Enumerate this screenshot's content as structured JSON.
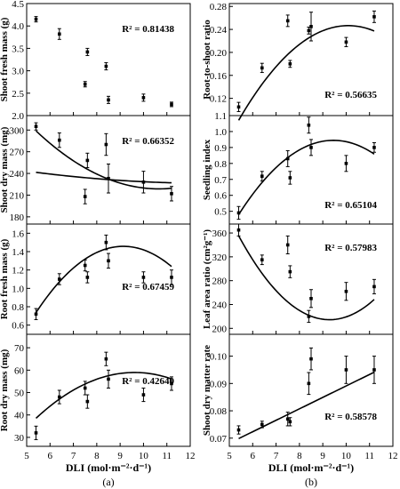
{
  "figure": {
    "xlabel_a": "DLI (mol·m⁻²·d⁻¹)",
    "xlabel_b": "DLI (mol·m⁻²·d⁻¹)",
    "label_a": "(a)",
    "label_b": "(b)"
  },
  "chart_data": [
    {
      "type": "scatter",
      "id": "shoot-fresh-mass",
      "ylabel": "Shoot fresh mass (g)",
      "r2": "R² = 0.81438",
      "xlim": [
        5,
        12
      ],
      "ylim": [
        2.0,
        4.5
      ],
      "yticks": [
        "2.0",
        "2.5",
        "3.0",
        "3.5",
        "4.0",
        "4.5"
      ],
      "yticks_num": [
        2.0,
        2.5,
        3.0,
        3.5,
        4.0,
        4.5
      ],
      "points": [
        {
          "x": 5.4,
          "y": 4.15,
          "err": 0.06
        },
        {
          "x": 6.4,
          "y": 3.82,
          "err": 0.12
        },
        {
          "x": 7.5,
          "y": 2.7,
          "err": 0.06
        },
        {
          "x": 7.6,
          "y": 3.42,
          "err": 0.08
        },
        {
          "x": 8.4,
          "y": 3.1,
          "err": 0.08
        },
        {
          "x": 8.5,
          "y": 2.35,
          "err": 0.08
        },
        {
          "x": 10.0,
          "y": 2.4,
          "err": 0.08
        },
        {
          "x": 11.2,
          "y": 2.25,
          "err": 0.05
        }
      ],
      "fit": [
        1.218,
        -0.1136,
        0.00442
      ]
    },
    {
      "type": "scatter",
      "id": "shoot-dry-mass",
      "ylabel": "Shoot dry mass (mg)",
      "r2": "R² = 0.66352",
      "xlim": [
        5,
        12
      ],
      "ylim": [
        170,
        320
      ],
      "yticks": [
        "180",
        "210",
        "240",
        "270",
        "300"
      ],
      "yticks_num": [
        180,
        210,
        240,
        270,
        300
      ],
      "points": [
        {
          "x": 5.4,
          "y": 305,
          "err": 5
        },
        {
          "x": 6.4,
          "y": 286,
          "err": 10
        },
        {
          "x": 7.5,
          "y": 208,
          "err": 10
        },
        {
          "x": 7.6,
          "y": 258,
          "err": 10
        },
        {
          "x": 8.4,
          "y": 280,
          "err": 15
        },
        {
          "x": 8.5,
          "y": 233,
          "err": 20
        },
        {
          "x": 10.0,
          "y": 228,
          "err": 15
        },
        {
          "x": 11.2,
          "y": 212,
          "err": 10
        }
      ],
      "fit": [
        548.1,
        -61.82,
        2.9
      ]
    },
    {
      "type": "scatter",
      "id": "root-fresh-mass",
      "ylabel": "Root fresh mass (g)",
      "r2": "R² = 0.67459",
      "xlim": [
        5,
        12
      ],
      "ylim": [
        0.5,
        1.7
      ],
      "yticks": [
        "0.6",
        "0.8",
        "1.0",
        "1.2",
        "1.4",
        "1.6"
      ],
      "yticks_num": [
        0.6,
        0.8,
        1.0,
        1.2,
        1.4,
        1.6
      ],
      "points": [
        {
          "x": 5.4,
          "y": 0.72,
          "err": 0.06
        },
        {
          "x": 6.4,
          "y": 1.1,
          "err": 0.06
        },
        {
          "x": 7.5,
          "y": 1.25,
          "err": 0.06
        },
        {
          "x": 7.6,
          "y": 1.12,
          "err": 0.06
        },
        {
          "x": 8.4,
          "y": 1.5,
          "err": 0.08
        },
        {
          "x": 8.5,
          "y": 1.3,
          "err": 0.08
        },
        {
          "x": 10.0,
          "y": 1.12,
          "err": 0.06
        },
        {
          "x": 11.2,
          "y": 1.12,
          "err": 0.08
        }
      ],
      "fit": [
        -2.853,
        0.9435,
        -0.05163
      ]
    },
    {
      "type": "scatter",
      "id": "root-dry-mass",
      "ylabel": "Root dry mass (mg)",
      "r2": "R² = 0.42640",
      "xlim": [
        5,
        12
      ],
      "ylim": [
        26,
        76
      ],
      "yticks": [
        "30",
        "40",
        "50",
        "60",
        "70"
      ],
      "yticks_num": [
        30,
        40,
        50,
        60,
        70
      ],
      "points": [
        {
          "x": 5.4,
          "y": 32,
          "err": 3
        },
        {
          "x": 6.4,
          "y": 48,
          "err": 3
        },
        {
          "x": 7.5,
          "y": 52,
          "err": 3
        },
        {
          "x": 7.6,
          "y": 46,
          "err": 3
        },
        {
          "x": 8.4,
          "y": 65,
          "err": 3
        },
        {
          "x": 8.5,
          "y": 56,
          "err": 4
        },
        {
          "x": 10.0,
          "y": 49,
          "err": 3
        },
        {
          "x": 11.2,
          "y": 54,
          "err": 3
        }
      ],
      "fit": [
        -47.31,
        22.1,
        -1.149
      ]
    },
    {
      "type": "scatter",
      "id": "root-to-shoot-ratio",
      "ylabel": "Root-to-shoot ratio",
      "r2": "R² = 0.56635",
      "xlim": [
        5,
        12
      ],
      "ylim": [
        0.09,
        0.285
      ],
      "yticks": [
        "0.12",
        "0.16",
        "0.20",
        "0.24",
        "0.28"
      ],
      "yticks_num": [
        0.12,
        0.16,
        0.2,
        0.24,
        0.28
      ],
      "points": [
        {
          "x": 5.4,
          "y": 0.105,
          "err": 0.008
        },
        {
          "x": 6.4,
          "y": 0.173,
          "err": 0.008
        },
        {
          "x": 7.5,
          "y": 0.255,
          "err": 0.01
        },
        {
          "x": 7.6,
          "y": 0.18,
          "err": 0.006
        },
        {
          "x": 8.4,
          "y": 0.238,
          "err": 0.006
        },
        {
          "x": 8.5,
          "y": 0.245,
          "err": 0.025
        },
        {
          "x": 10.0,
          "y": 0.218,
          "err": 0.008
        },
        {
          "x": 11.2,
          "y": 0.262,
          "err": 0.01
        }
      ],
      "fit": [
        -0.5165,
        0.1513,
        -0.0075
      ]
    },
    {
      "type": "scatter",
      "id": "seedling-index",
      "ylabel": "Seedling index",
      "r2": "R² = 0.65104",
      "xlim": [
        5,
        12
      ],
      "ylim": [
        0.42,
        1.1
      ],
      "yticks": [
        "0.5",
        "0.6",
        "0.7",
        "0.8",
        "0.9",
        "1.0",
        "1.1"
      ],
      "yticks_num": [
        0.5,
        0.6,
        0.7,
        0.8,
        0.9,
        1.0,
        1.1
      ],
      "points": [
        {
          "x": 5.4,
          "y": 0.49,
          "err": 0.04
        },
        {
          "x": 6.4,
          "y": 0.72,
          "err": 0.03
        },
        {
          "x": 7.5,
          "y": 0.83,
          "err": 0.05
        },
        {
          "x": 7.6,
          "y": 0.71,
          "err": 0.04
        },
        {
          "x": 8.4,
          "y": 1.04,
          "err": 0.05
        },
        {
          "x": 8.5,
          "y": 0.9,
          "err": 0.05
        },
        {
          "x": 10.0,
          "y": 0.8,
          "err": 0.05
        },
        {
          "x": 11.2,
          "y": 0.9,
          "err": 0.03
        }
      ],
      "fit": [
        -1.5856,
        0.5352,
        -0.0283
      ]
    },
    {
      "type": "scatter",
      "id": "leaf-area-ratio",
      "ylabel": "Leaf area ratio (cm²g⁻¹)",
      "r2": "R² = 0.57983",
      "xlim": [
        5,
        12
      ],
      "ylim": [
        190,
        375
      ],
      "yticks": [
        "200",
        "240",
        "280",
        "320",
        "360"
      ],
      "yticks_num": [
        200,
        240,
        280,
        320,
        360
      ],
      "points": [
        {
          "x": 5.4,
          "y": 365,
          "err": 10
        },
        {
          "x": 6.4,
          "y": 315,
          "err": 8
        },
        {
          "x": 7.5,
          "y": 340,
          "err": 15
        },
        {
          "x": 7.6,
          "y": 295,
          "err": 10
        },
        {
          "x": 8.4,
          "y": 220,
          "err": 10
        },
        {
          "x": 8.5,
          "y": 250,
          "err": 15
        },
        {
          "x": 10.0,
          "y": 262,
          "err": 15
        },
        {
          "x": 11.2,
          "y": 270,
          "err": 12
        }
      ],
      "fit": [
        1017.2,
        -172.8,
        9.3
      ]
    },
    {
      "type": "scatter",
      "id": "shoot-dry-matter-rate",
      "ylabel": "Shoot dry matter rate",
      "r2": "R² = 0.58578",
      "xlim": [
        5,
        12
      ],
      "ylim": [
        0.067,
        0.108
      ],
      "yticks": [
        "0.07",
        "0.08",
        "0.09",
        "0.10"
      ],
      "yticks_num": [
        0.07,
        0.08,
        0.09,
        0.1
      ],
      "points": [
        {
          "x": 5.4,
          "y": 0.073,
          "err": 0.0015
        },
        {
          "x": 6.4,
          "y": 0.075,
          "err": 0.0012
        },
        {
          "x": 7.5,
          "y": 0.077,
          "err": 0.0025
        },
        {
          "x": 7.6,
          "y": 0.076,
          "err": 0.0015
        },
        {
          "x": 8.4,
          "y": 0.09,
          "err": 0.004
        },
        {
          "x": 8.5,
          "y": 0.099,
          "err": 0.004
        },
        {
          "x": 10.0,
          "y": 0.095,
          "err": 0.005
        },
        {
          "x": 11.2,
          "y": 0.095,
          "err": 0.005
        }
      ],
      "fit": [
        0.0472,
        0.00419,
        0
      ]
    }
  ],
  "xticks": [
    "5",
    "6",
    "7",
    "8",
    "9",
    "10",
    "11",
    "12"
  ],
  "xticks_num": [
    5,
    6,
    7,
    8,
    9,
    10,
    11,
    12
  ]
}
